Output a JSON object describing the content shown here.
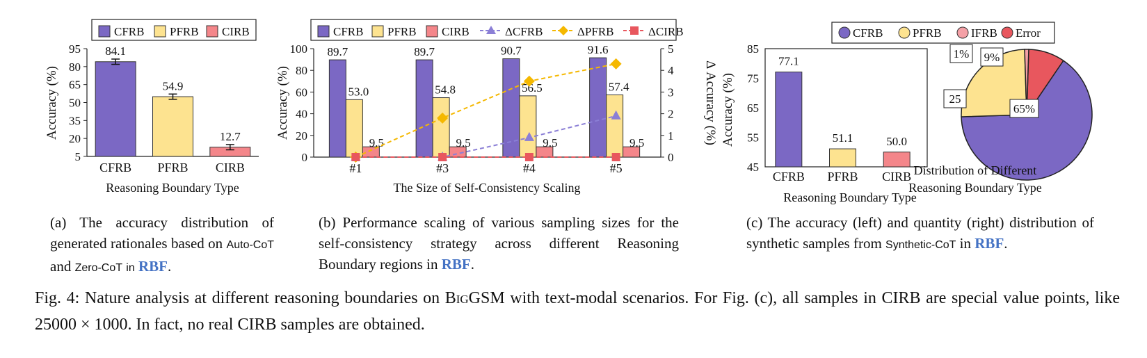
{
  "chart_data": [
    {
      "type": "bar",
      "panel": "a",
      "categories": [
        "CFRB",
        "PFRB",
        "CIRB"
      ],
      "values": [
        84.1,
        54.9,
        12.7
      ],
      "error_bars": true,
      "colors": [
        "#7b68c4",
        "#fde390",
        "#f4868a"
      ],
      "legend": [
        "CFRB",
        "PFRB",
        "CIRB"
      ],
      "xlabel": "Reasoning Boundary Type",
      "ylabel": "Accuracy (%)",
      "yticks": [
        "95",
        "80",
        "65",
        "50",
        "35",
        "20",
        "5"
      ],
      "ylim": [
        5,
        95
      ]
    },
    {
      "type": "bar+line",
      "panel": "b",
      "categories": [
        "#1",
        "#3",
        "#4",
        "#5"
      ],
      "series": [
        {
          "name": "CFRB",
          "values": [
            89.7,
            89.7,
            90.7,
            91.6
          ],
          "color": "#7b68c4"
        },
        {
          "name": "PFRB",
          "values": [
            53.0,
            54.8,
            56.5,
            57.4
          ],
          "color": "#fde390"
        },
        {
          "name": "CIRB",
          "values": [
            9.5,
            9.5,
            9.5,
            9.5
          ],
          "color": "#f4868a"
        }
      ],
      "delta_series": [
        {
          "name": "ΔCFRB",
          "values": [
            0,
            0,
            0.9,
            1.9
          ],
          "color": "#8b7fd6",
          "marker": "triangle"
        },
        {
          "name": "ΔPFRB",
          "values": [
            0,
            1.8,
            3.5,
            4.3
          ],
          "color": "#f5b800",
          "marker": "diamond"
        },
        {
          "name": "ΔCIRB",
          "values": [
            0,
            0,
            0,
            0
          ],
          "color": "#e8575e",
          "marker": "square"
        }
      ],
      "xlabel": "The Size of Self-Consistency Scaling",
      "ylabel": "Accuracy (%)",
      "y2label": "Δ Accuracy (%)",
      "yticks": [
        "0",
        "20",
        "40",
        "60",
        "80",
        "100"
      ],
      "y2ticks": [
        "0",
        "1",
        "2",
        "3",
        "4",
        "5"
      ],
      "ylim": [
        0,
        100
      ],
      "y2lim": [
        0,
        5
      ]
    },
    {
      "type": "bar",
      "panel": "c-left",
      "categories": [
        "CFRB",
        "PFRB",
        "CIRB"
      ],
      "values": [
        77.1,
        51.1,
        50.0
      ],
      "colors": [
        "#7b68c4",
        "#fde390",
        "#f4868a"
      ],
      "xlabel": "Reasoning Boundary Type",
      "ylabel": "Accuracy (%)",
      "yticks": [
        "85",
        "75",
        "65",
        "55",
        "45"
      ],
      "ylim": [
        45,
        85
      ]
    },
    {
      "type": "pie",
      "panel": "c-right",
      "labels": [
        "CFRB",
        "PFRB",
        "IFRB",
        "Error"
      ],
      "values": [
        65,
        25,
        1,
        9
      ],
      "value_labels": [
        "65%",
        "25",
        "1%",
        "9%"
      ],
      "colors": [
        "#7b68c4",
        "#fde390",
        "#f4a0a6",
        "#e8575e"
      ],
      "title_lines": [
        "Distribution of Different",
        "Reasoning Boundary Type"
      ]
    }
  ],
  "captions": {
    "a": {
      "prefix": "(a) The accuracy distribution of generated rationales based on",
      "sans1": "Auto-CoT",
      "and": "and",
      "sans2": "Zero-CoT",
      "in": "in",
      "rbf": "RBF",
      "end": "."
    },
    "b": {
      "prefix": "(b) Performance scaling of various sampling sizes for the self-consistency strategy across different Reasoning Boundary regions in",
      "rbf": "RBF",
      "end": "."
    },
    "c": {
      "prefix": "(c) The accuracy (left) and quantity (right) distribution of synthetic samples from",
      "sans": "Synthetic-CoT",
      "in": "in",
      "rbf": "RBF",
      "end": "."
    }
  },
  "figure_caption": {
    "part1": "Fig. 4: Nature analysis at different reasoning boundaries on",
    "dataset": "BigGSM",
    "part2": "with text-modal scenarios. For Fig. (c), all samples in CIRB are special value points, like 25000 × 1000. In fact, no real CIRB samples are obtained."
  }
}
